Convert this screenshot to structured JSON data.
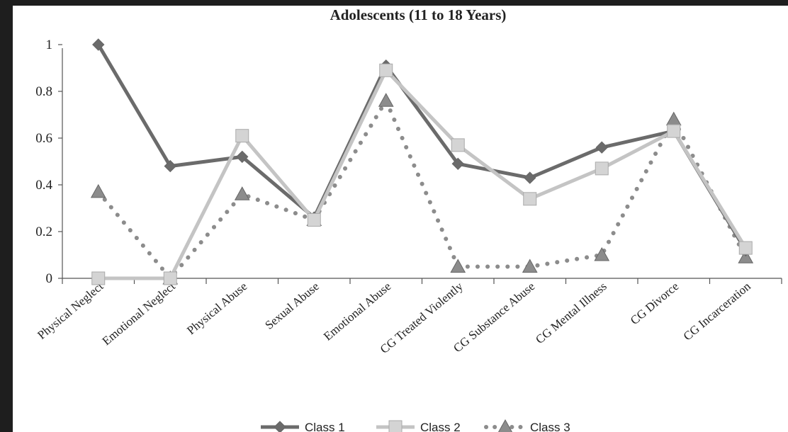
{
  "chart_data": {
    "type": "line",
    "title": "Adolescents (11 to 18 Years)",
    "categories": [
      "Physical Neglect",
      "Emotional Neglect",
      "Physical Abuse",
      "Sexual Abuse",
      "Emotional Abuse",
      "CG Treated Violently",
      "CG Substance Abuse",
      "CG Mental Illness",
      "CG Divorce",
      "CG Incarceration"
    ],
    "ylim": [
      0,
      1
    ],
    "yticks": [
      "0",
      "0.2",
      "0.4",
      "0.6",
      "0.8",
      "1"
    ],
    "grid": false,
    "legend_position": "bottom",
    "series": [
      {
        "name": "Class 1",
        "values": [
          1.0,
          0.48,
          0.52,
          0.26,
          0.91,
          0.49,
          0.43,
          0.56,
          0.63,
          0.12
        ],
        "color": "#6b6b6b",
        "marker": "diamond",
        "line": "solid"
      },
      {
        "name": "Class 2",
        "values": [
          0.0,
          0.0,
          0.61,
          0.25,
          0.89,
          0.57,
          0.34,
          0.47,
          0.63,
          0.13
        ],
        "color": "#c4c4c4",
        "marker": "square",
        "line": "solid"
      },
      {
        "name": "Class 3",
        "values": [
          0.37,
          0.0,
          0.36,
          0.25,
          0.76,
          0.05,
          0.05,
          0.1,
          0.68,
          0.09
        ],
        "color": "#8c8c8c",
        "marker": "triangle",
        "line": "dotted"
      }
    ]
  }
}
